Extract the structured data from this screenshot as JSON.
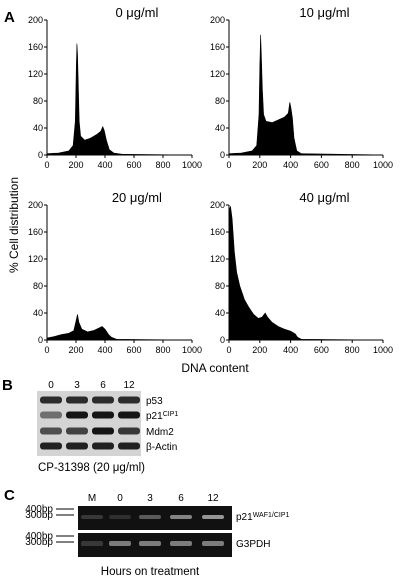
{
  "panel_a": {
    "letter": "A",
    "ylabel": "% Cell distribution",
    "xlabel": "DNA content",
    "x_ticks": [
      "0",
      "200",
      "400",
      "600",
      "800",
      "1000"
    ],
    "y_ticks": [
      "0",
      "40",
      "80",
      "120",
      "160",
      "200"
    ]
  },
  "chart_data": [
    {
      "type": "area",
      "title": "0 μg/ml",
      "xlim": [
        0,
        1000
      ],
      "ylim": [
        0,
        200
      ],
      "points": [
        [
          0,
          2
        ],
        [
          80,
          3
        ],
        [
          150,
          6
        ],
        [
          180,
          14
        ],
        [
          195,
          50
        ],
        [
          202,
          130
        ],
        [
          206,
          165
        ],
        [
          210,
          150
        ],
        [
          215,
          110
        ],
        [
          222,
          50
        ],
        [
          232,
          28
        ],
        [
          260,
          22
        ],
        [
          300,
          25
        ],
        [
          340,
          30
        ],
        [
          370,
          35
        ],
        [
          385,
          42
        ],
        [
          395,
          36
        ],
        [
          410,
          22
        ],
        [
          430,
          8
        ],
        [
          460,
          3
        ],
        [
          520,
          1
        ],
        [
          1000,
          0
        ]
      ]
    },
    {
      "type": "area",
      "title": "10 μg/ml",
      "xlim": [
        0,
        1000
      ],
      "ylim": [
        0,
        200
      ],
      "points": [
        [
          0,
          2
        ],
        [
          80,
          3
        ],
        [
          150,
          6
        ],
        [
          180,
          14
        ],
        [
          195,
          60
        ],
        [
          200,
          130
        ],
        [
          205,
          178
        ],
        [
          210,
          150
        ],
        [
          216,
          100
        ],
        [
          225,
          60
        ],
        [
          240,
          50
        ],
        [
          280,
          48
        ],
        [
          320,
          52
        ],
        [
          360,
          56
        ],
        [
          385,
          62
        ],
        [
          395,
          78
        ],
        [
          402,
          70
        ],
        [
          412,
          55
        ],
        [
          422,
          25
        ],
        [
          440,
          6
        ],
        [
          470,
          2
        ],
        [
          1000,
          0
        ]
      ]
    },
    {
      "type": "area",
      "title": "20 μg/ml",
      "xlim": [
        0,
        1000
      ],
      "ylim": [
        0,
        200
      ],
      "points": [
        [
          0,
          3
        ],
        [
          50,
          5
        ],
        [
          100,
          8
        ],
        [
          150,
          10
        ],
        [
          185,
          14
        ],
        [
          200,
          28
        ],
        [
          210,
          38
        ],
        [
          220,
          26
        ],
        [
          240,
          16
        ],
        [
          280,
          12
        ],
        [
          320,
          14
        ],
        [
          360,
          18
        ],
        [
          380,
          20
        ],
        [
          400,
          16
        ],
        [
          425,
          8
        ],
        [
          445,
          4
        ],
        [
          480,
          1
        ],
        [
          1000,
          0
        ]
      ]
    },
    {
      "type": "area",
      "title": "40 μg/ml",
      "xlim": [
        0,
        1000
      ],
      "ylim": [
        0,
        200
      ],
      "points": [
        [
          0,
          190
        ],
        [
          10,
          198
        ],
        [
          20,
          180
        ],
        [
          35,
          130
        ],
        [
          50,
          100
        ],
        [
          70,
          80
        ],
        [
          100,
          60
        ],
        [
          130,
          48
        ],
        [
          160,
          38
        ],
        [
          190,
          32
        ],
        [
          215,
          34
        ],
        [
          235,
          40
        ],
        [
          250,
          34
        ],
        [
          280,
          26
        ],
        [
          320,
          20
        ],
        [
          360,
          16
        ],
        [
          400,
          13
        ],
        [
          430,
          9
        ],
        [
          445,
          4
        ],
        [
          470,
          1
        ],
        [
          1000,
          0
        ]
      ]
    }
  ],
  "panel_b": {
    "letter": "B",
    "lanes": [
      "0",
      "3",
      "6",
      "12"
    ],
    "rows": [
      {
        "label": "p53",
        "sup": ""
      },
      {
        "label": "p21",
        "sup": "CIP1"
      },
      {
        "label": "Mdm2",
        "sup": ""
      },
      {
        "label": "β-Actin",
        "sup": ""
      }
    ],
    "treatment": "CP-31398 (20 μg/ml)"
  },
  "panel_c": {
    "letter": "C",
    "lanes": [
      "M",
      "0",
      "3",
      "6",
      "12"
    ],
    "size_markers": [
      "400bp",
      "300bp"
    ],
    "rows": [
      {
        "label": "p21",
        "sup": "WAF1/CIP1"
      },
      {
        "label": "G3PDH",
        "sup": ""
      }
    ],
    "caption": "Hours on treatment"
  }
}
